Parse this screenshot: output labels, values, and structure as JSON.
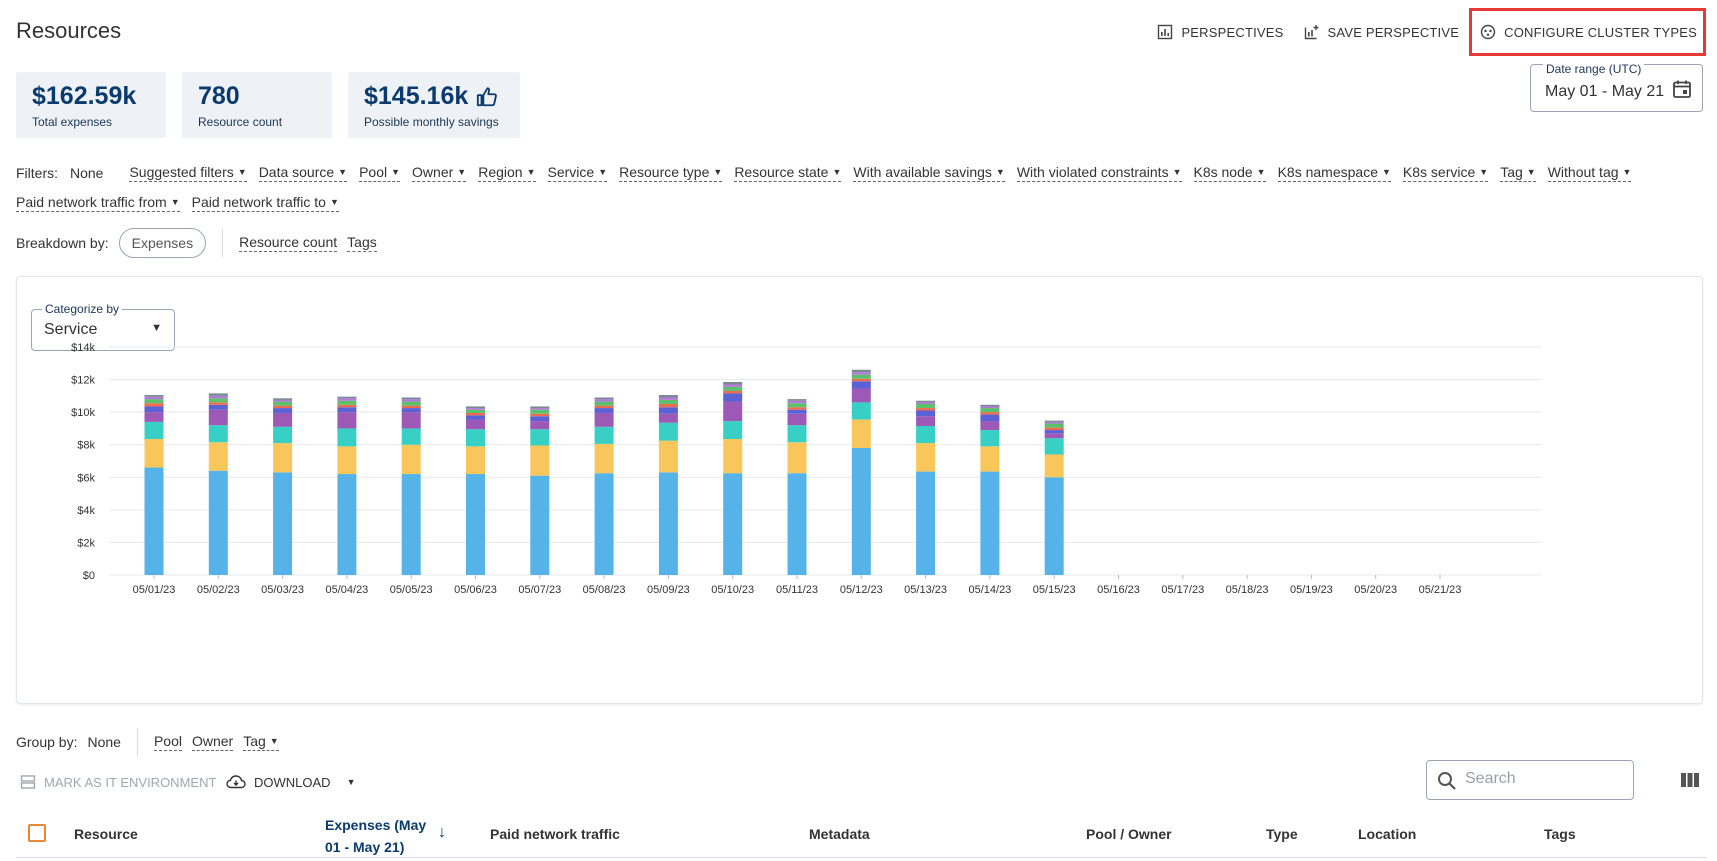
{
  "page": {
    "title": "Resources"
  },
  "top_actions": {
    "perspectives": "PERSPECTIVES",
    "save_perspective": "SAVE PERSPECTIVE",
    "configure_cluster_types": "CONFIGURE CLUSTER TYPES",
    "highlight_color": "#e53935"
  },
  "summary": {
    "total_expenses": {
      "value": "$162.59k",
      "label": "Total expenses"
    },
    "resource_count": {
      "value": "780",
      "label": "Resource count"
    },
    "possible_savings": {
      "value": "$145.16k",
      "label": "Possible monthly savings",
      "icon": "thumbs-up-icon"
    }
  },
  "date_range": {
    "label": "Date range (UTC)",
    "value": "May 01 - May 21",
    "icon": "calendar-icon"
  },
  "filters": {
    "label": "Filters:",
    "current": "None",
    "row1": [
      "Suggested filters",
      "Data source",
      "Pool",
      "Owner",
      "Region",
      "Service",
      "Resource type",
      "Resource state",
      "With available savings",
      "With violated constraints",
      "K8s node",
      "K8s namespace",
      "K8s service",
      "Tag",
      "Without tag"
    ],
    "row2": [
      "Paid network traffic from",
      "Paid network traffic to"
    ]
  },
  "breakdown": {
    "label": "Breakdown by:",
    "active": "Expenses",
    "options": [
      "Resource count",
      "Tags"
    ]
  },
  "categorize": {
    "label": "Categorize by",
    "value": "Service"
  },
  "group_by": {
    "label": "Group by:",
    "current": "None",
    "options": [
      "Pool",
      "Owner",
      "Tag"
    ]
  },
  "toolbar": {
    "mark_env": "MARK AS IT ENVIRONMENT",
    "download": "DOWNLOAD",
    "search_placeholder": "Search"
  },
  "table": {
    "columns": [
      "Resource",
      "Expenses (May 01 - May 21)",
      "Paid network traffic",
      "Metadata",
      "Pool / Owner",
      "Type",
      "Location",
      "Tags"
    ]
  },
  "chart_data": {
    "type": "bar",
    "stacked": true,
    "categories": [
      "05/01/23",
      "05/02/23",
      "05/03/23",
      "05/04/23",
      "05/05/23",
      "05/06/23",
      "05/07/23",
      "05/08/23",
      "05/09/23",
      "05/10/23",
      "05/11/23",
      "05/12/23",
      "05/13/23",
      "05/14/23",
      "05/15/23",
      "05/16/23",
      "05/17/23",
      "05/18/23",
      "05/19/23",
      "05/20/23",
      "05/21/23"
    ],
    "y_ticks": [
      "$0",
      "$2k",
      "$4k",
      "$6k",
      "$8k",
      "$10k",
      "$12k",
      "$14k"
    ],
    "ylim": [
      0,
      14000
    ],
    "grid": true,
    "series": [
      {
        "color": "#55b3ea",
        "values": [
          6600,
          6400,
          6300,
          6200,
          6200,
          6200,
          6100,
          6250,
          6300,
          6250,
          6250,
          7800,
          6350,
          6350,
          6000,
          0,
          0,
          0,
          0,
          0,
          0
        ]
      },
      {
        "color": "#f9c65b",
        "values": [
          1750,
          1750,
          1800,
          1700,
          1800,
          1700,
          1850,
          1800,
          1950,
          2100,
          1900,
          1750,
          1750,
          1550,
          1400,
          0,
          0,
          0,
          0,
          0,
          0
        ]
      },
      {
        "color": "#38d0c4",
        "values": [
          1050,
          1050,
          1000,
          1100,
          1000,
          1050,
          1000,
          1050,
          1100,
          1100,
          1050,
          1050,
          1050,
          1000,
          1000,
          0,
          0,
          0,
          0,
          0,
          0
        ]
      },
      {
        "color": "#9c59b6",
        "values": [
          600,
          950,
          850,
          1000,
          1000,
          600,
          500,
          850,
          550,
          1200,
          700,
          850,
          600,
          550,
          300,
          0,
          0,
          0,
          0,
          0,
          0
        ]
      },
      {
        "color": "#5a62d6",
        "values": [
          350,
          300,
          300,
          300,
          250,
          250,
          300,
          300,
          400,
          500,
          250,
          450,
          350,
          400,
          200,
          0,
          0,
          0,
          0,
          0,
          0
        ]
      },
      {
        "color": "#ef6b4f",
        "values": [
          200,
          150,
          150,
          150,
          150,
          150,
          150,
          150,
          200,
          150,
          150,
          150,
          150,
          150,
          150,
          0,
          0,
          0,
          0,
          0,
          0
        ]
      },
      {
        "color": "#5cc06c",
        "values": [
          250,
          250,
          250,
          250,
          250,
          200,
          250,
          250,
          250,
          250,
          250,
          250,
          250,
          250,
          250,
          0,
          0,
          0,
          0,
          0,
          0
        ]
      },
      {
        "color": "#b07cd8",
        "values": [
          150,
          150,
          100,
          150,
          150,
          100,
          100,
          150,
          150,
          150,
          150,
          150,
          100,
          100,
          100,
          0,
          0,
          0,
          0,
          0,
          0
        ]
      },
      {
        "color": "#7a8794",
        "values": [
          100,
          150,
          100,
          100,
          100,
          100,
          100,
          100,
          150,
          150,
          100,
          150,
          100,
          100,
          80,
          0,
          0,
          0,
          0,
          0,
          0
        ]
      }
    ]
  }
}
